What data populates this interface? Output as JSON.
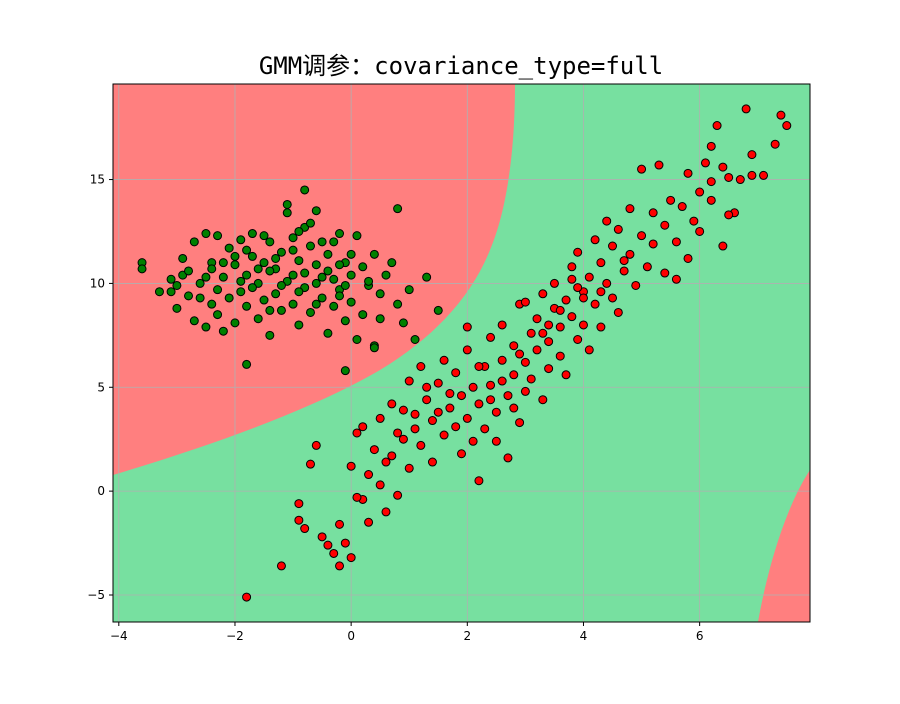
{
  "chart_data": {
    "type": "scatter",
    "title": "GMM调参：covariance_type=full",
    "xlabel": "",
    "ylabel": "",
    "xlim": [
      -4.1,
      7.9
    ],
    "ylim": [
      -6.3,
      19.6
    ],
    "x_ticks": [
      -4,
      -2,
      0,
      2,
      4,
      6
    ],
    "y_ticks": [
      -5,
      0,
      5,
      10,
      15
    ],
    "x_tick_labels": [
      "−4",
      "−2",
      "0",
      "2",
      "4",
      "6"
    ],
    "y_tick_labels": [
      "−5",
      "0",
      "5",
      "10",
      "15"
    ],
    "grid": true,
    "legend": "none",
    "background_regions": [
      {
        "color": "#ff7f7f",
        "class": "red",
        "description": "upper-left region and lower-right corner"
      },
      {
        "color": "#77e0a0",
        "class": "green",
        "description": "central diagonal band"
      }
    ],
    "series": [
      {
        "color": "#008000",
        "edgecolor": "#000000",
        "points": [
          [
            -3.6,
            11.0
          ],
          [
            -3.6,
            10.7
          ],
          [
            -3.1,
            10.2
          ],
          [
            -3.1,
            9.6
          ],
          [
            -3.0,
            8.8
          ],
          [
            -2.9,
            11.2
          ],
          [
            -2.9,
            10.4
          ],
          [
            -2.8,
            9.4
          ],
          [
            -2.7,
            12.0
          ],
          [
            -2.7,
            8.2
          ],
          [
            -2.6,
            10.0
          ],
          [
            -2.5,
            12.4
          ],
          [
            -2.5,
            7.9
          ],
          [
            -2.4,
            11.0
          ],
          [
            -2.4,
            9.0
          ],
          [
            -2.3,
            12.3
          ],
          [
            -2.3,
            8.5
          ],
          [
            -2.2,
            10.3
          ],
          [
            -2.2,
            7.7
          ],
          [
            -2.1,
            11.7
          ],
          [
            -2.1,
            9.3
          ],
          [
            -2.0,
            10.9
          ],
          [
            -2.0,
            8.1
          ],
          [
            -1.9,
            12.1
          ],
          [
            -1.9,
            9.6
          ],
          [
            -1.8,
            10.4
          ],
          [
            -1.8,
            8.9
          ],
          [
            -1.7,
            12.4
          ],
          [
            -1.7,
            11.3
          ],
          [
            -1.6,
            10.0
          ],
          [
            -1.6,
            8.3
          ],
          [
            -1.5,
            11.0
          ],
          [
            -1.5,
            9.2
          ],
          [
            -1.4,
            12.0
          ],
          [
            -1.4,
            7.5
          ],
          [
            -1.3,
            10.7
          ],
          [
            -1.3,
            9.5
          ],
          [
            -1.2,
            11.5
          ],
          [
            -1.2,
            8.7
          ],
          [
            -1.1,
            13.4
          ],
          [
            -1.1,
            10.1
          ],
          [
            -1.0,
            12.2
          ],
          [
            -1.0,
            9.0
          ],
          [
            -0.9,
            11.1
          ],
          [
            -0.9,
            8.0
          ],
          [
            -0.8,
            12.7
          ],
          [
            -0.8,
            10.5
          ],
          [
            -0.8,
            9.8
          ],
          [
            -0.7,
            11.8
          ],
          [
            -0.7,
            8.6
          ],
          [
            -0.6,
            13.5
          ],
          [
            -0.6,
            10.9
          ],
          [
            -0.5,
            12.0
          ],
          [
            -0.5,
            9.3
          ],
          [
            -0.4,
            11.4
          ],
          [
            -0.4,
            7.6
          ],
          [
            -0.3,
            10.2
          ],
          [
            -0.3,
            8.9
          ],
          [
            -0.2,
            12.4
          ],
          [
            -0.2,
            9.7
          ],
          [
            -0.1,
            11.0
          ],
          [
            -0.1,
            8.2
          ],
          [
            0.0,
            10.4
          ],
          [
            0.0,
            9.1
          ],
          [
            0.1,
            12.3
          ],
          [
            0.1,
            7.3
          ],
          [
            0.2,
            10.8
          ],
          [
            0.2,
            8.5
          ],
          [
            0.3,
            9.9
          ],
          [
            0.4,
            11.4
          ],
          [
            0.4,
            7.0
          ],
          [
            0.5,
            9.5
          ],
          [
            0.5,
            8.3
          ],
          [
            0.6,
            10.4
          ],
          [
            0.7,
            11.0
          ],
          [
            0.8,
            9.0
          ],
          [
            0.9,
            8.1
          ],
          [
            1.0,
            9.7
          ],
          [
            1.1,
            7.3
          ],
          [
            1.3,
            10.3
          ],
          [
            1.5,
            8.7
          ],
          [
            0.8,
            13.6
          ],
          [
            -0.8,
            14.5
          ],
          [
            -1.8,
            6.1
          ],
          [
            -0.1,
            5.8
          ],
          [
            0.4,
            6.9
          ],
          [
            -2.5,
            10.3
          ],
          [
            -2.0,
            11.3
          ],
          [
            -1.0,
            11.6
          ],
          [
            -1.4,
            10.6
          ],
          [
            -0.6,
            10.0
          ],
          [
            -0.9,
            9.6
          ],
          [
            -1.7,
            9.8
          ],
          [
            -1.2,
            9.9
          ],
          [
            -0.4,
            10.6
          ],
          [
            -0.2,
            10.9
          ],
          [
            -2.3,
            9.7
          ],
          [
            -2.6,
            9.3
          ],
          [
            -1.5,
            12.3
          ],
          [
            -0.7,
            12.9
          ],
          [
            -1.1,
            13.8
          ],
          [
            -0.3,
            12.0
          ],
          [
            0.3,
            10.1
          ],
          [
            -2.8,
            10.6
          ],
          [
            -1.9,
            10.1
          ],
          [
            -1.6,
            10.7
          ],
          [
            -1.0,
            10.4
          ],
          [
            -0.5,
            10.3
          ],
          [
            -0.2,
            9.4
          ],
          [
            0.0,
            11.4
          ],
          [
            -2.2,
            11.0
          ],
          [
            -1.3,
            11.2
          ],
          [
            -0.9,
            12.5
          ],
          [
            -1.8,
            11.6
          ],
          [
            -2.4,
            10.7
          ],
          [
            -3.0,
            9.9
          ],
          [
            -3.3,
            9.6
          ],
          [
            -0.6,
            9.0
          ],
          [
            -1.4,
            8.7
          ],
          [
            -0.1,
            9.9
          ]
        ]
      },
      {
        "color": "#ff0000",
        "edgecolor": "#000000",
        "points": [
          [
            -1.8,
            -5.1
          ],
          [
            -1.2,
            -3.6
          ],
          [
            -0.9,
            -1.4
          ],
          [
            -0.9,
            -0.6
          ],
          [
            -0.8,
            -1.8
          ],
          [
            -0.7,
            1.3
          ],
          [
            -0.6,
            2.2
          ],
          [
            -0.5,
            -2.2
          ],
          [
            -0.3,
            -3.0
          ],
          [
            -0.2,
            -3.6
          ],
          [
            -0.1,
            -2.5
          ],
          [
            0.0,
            -3.2
          ],
          [
            0.0,
            1.2
          ],
          [
            0.1,
            2.8
          ],
          [
            0.2,
            -0.4
          ],
          [
            0.2,
            3.1
          ],
          [
            0.3,
            0.8
          ],
          [
            0.3,
            -1.5
          ],
          [
            0.4,
            2.0
          ],
          [
            0.5,
            0.3
          ],
          [
            0.5,
            3.5
          ],
          [
            0.6,
            -1.0
          ],
          [
            0.7,
            1.7
          ],
          [
            0.7,
            4.2
          ],
          [
            0.8,
            -0.2
          ],
          [
            0.9,
            2.5
          ],
          [
            0.9,
            3.9
          ],
          [
            1.0,
            1.1
          ],
          [
            1.0,
            5.3
          ],
          [
            1.1,
            3.0
          ],
          [
            1.2,
            2.2
          ],
          [
            1.2,
            6.0
          ],
          [
            1.3,
            4.4
          ],
          [
            1.4,
            1.4
          ],
          [
            1.4,
            3.4
          ],
          [
            1.5,
            5.2
          ],
          [
            1.6,
            2.7
          ],
          [
            1.6,
            6.3
          ],
          [
            1.7,
            4.0
          ],
          [
            1.8,
            3.1
          ],
          [
            1.8,
            5.7
          ],
          [
            1.9,
            1.8
          ],
          [
            1.9,
            4.6
          ],
          [
            2.0,
            3.5
          ],
          [
            2.0,
            6.8
          ],
          [
            2.1,
            2.4
          ],
          [
            2.1,
            5.0
          ],
          [
            2.2,
            0.5
          ],
          [
            2.2,
            4.2
          ],
          [
            2.3,
            6.0
          ],
          [
            2.3,
            3.0
          ],
          [
            2.4,
            7.4
          ],
          [
            2.4,
            5.1
          ],
          [
            2.5,
            3.8
          ],
          [
            2.5,
            2.4
          ],
          [
            2.6,
            6.3
          ],
          [
            2.6,
            8.0
          ],
          [
            2.7,
            4.6
          ],
          [
            2.7,
            1.6
          ],
          [
            2.8,
            5.6
          ],
          [
            2.8,
            7.0
          ],
          [
            2.9,
            9.0
          ],
          [
            2.9,
            3.3
          ],
          [
            3.0,
            6.2
          ],
          [
            3.0,
            4.8
          ],
          [
            3.1,
            7.6
          ],
          [
            3.1,
            5.4
          ],
          [
            3.2,
            8.3
          ],
          [
            3.2,
            6.8
          ],
          [
            3.3,
            4.4
          ],
          [
            3.3,
            9.5
          ],
          [
            3.4,
            7.2
          ],
          [
            3.4,
            5.9
          ],
          [
            3.5,
            8.8
          ],
          [
            3.5,
            10.0
          ],
          [
            3.6,
            6.5
          ],
          [
            3.6,
            7.9
          ],
          [
            3.7,
            9.2
          ],
          [
            3.7,
            5.6
          ],
          [
            3.8,
            10.8
          ],
          [
            3.8,
            8.4
          ],
          [
            3.9,
            7.3
          ],
          [
            3.9,
            11.5
          ],
          [
            4.0,
            9.6
          ],
          [
            4.0,
            8.0
          ],
          [
            4.1,
            10.3
          ],
          [
            4.1,
            6.8
          ],
          [
            4.2,
            12.1
          ],
          [
            4.2,
            9.0
          ],
          [
            4.3,
            11.0
          ],
          [
            4.3,
            7.9
          ],
          [
            4.4,
            13.0
          ],
          [
            4.4,
            10.0
          ],
          [
            4.5,
            11.8
          ],
          [
            4.5,
            9.3
          ],
          [
            4.6,
            12.6
          ],
          [
            4.6,
            8.6
          ],
          [
            4.7,
            10.6
          ],
          [
            4.8,
            13.6
          ],
          [
            4.8,
            11.4
          ],
          [
            4.9,
            9.9
          ],
          [
            5.0,
            12.3
          ],
          [
            5.0,
            15.5
          ],
          [
            5.1,
            10.8
          ],
          [
            5.2,
            13.4
          ],
          [
            5.2,
            11.9
          ],
          [
            5.3,
            15.7
          ],
          [
            5.4,
            12.8
          ],
          [
            5.4,
            10.5
          ],
          [
            5.5,
            14.0
          ],
          [
            5.6,
            12.0
          ],
          [
            5.6,
            10.2
          ],
          [
            5.7,
            13.7
          ],
          [
            5.8,
            11.2
          ],
          [
            5.8,
            15.3
          ],
          [
            5.9,
            13.0
          ],
          [
            6.0,
            14.4
          ],
          [
            6.0,
            12.5
          ],
          [
            6.1,
            15.8
          ],
          [
            6.2,
            14.0
          ],
          [
            6.2,
            16.6
          ],
          [
            6.3,
            17.6
          ],
          [
            6.4,
            11.8
          ],
          [
            6.5,
            15.1
          ],
          [
            6.6,
            13.4
          ],
          [
            6.7,
            15.0
          ],
          [
            6.8,
            18.4
          ],
          [
            6.9,
            15.2
          ],
          [
            7.1,
            15.2
          ],
          [
            7.3,
            16.7
          ],
          [
            7.4,
            18.1
          ],
          [
            7.5,
            17.6
          ],
          [
            6.9,
            16.2
          ],
          [
            6.5,
            13.3
          ],
          [
            6.2,
            14.9
          ],
          [
            6.4,
            15.6
          ],
          [
            3.0,
            9.1
          ],
          [
            2.0,
            7.9
          ],
          [
            1.3,
            5.0
          ],
          [
            0.8,
            2.8
          ],
          [
            2.2,
            6.0
          ],
          [
            2.9,
            6.6
          ],
          [
            3.4,
            8.0
          ],
          [
            4.0,
            9.3
          ],
          [
            4.7,
            11.1
          ],
          [
            3.9,
            9.8
          ],
          [
            3.3,
            7.6
          ],
          [
            2.6,
            5.3
          ],
          [
            1.7,
            4.7
          ],
          [
            1.1,
            3.7
          ],
          [
            0.6,
            1.4
          ],
          [
            0.1,
            -0.3
          ],
          [
            -0.2,
            -1.6
          ],
          [
            -0.4,
            -2.6
          ],
          [
            3.8,
            10.2
          ],
          [
            4.3,
            9.6
          ],
          [
            3.6,
            8.7
          ],
          [
            2.4,
            4.4
          ],
          [
            1.5,
            3.8
          ],
          [
            2.8,
            4.0
          ]
        ]
      }
    ]
  }
}
